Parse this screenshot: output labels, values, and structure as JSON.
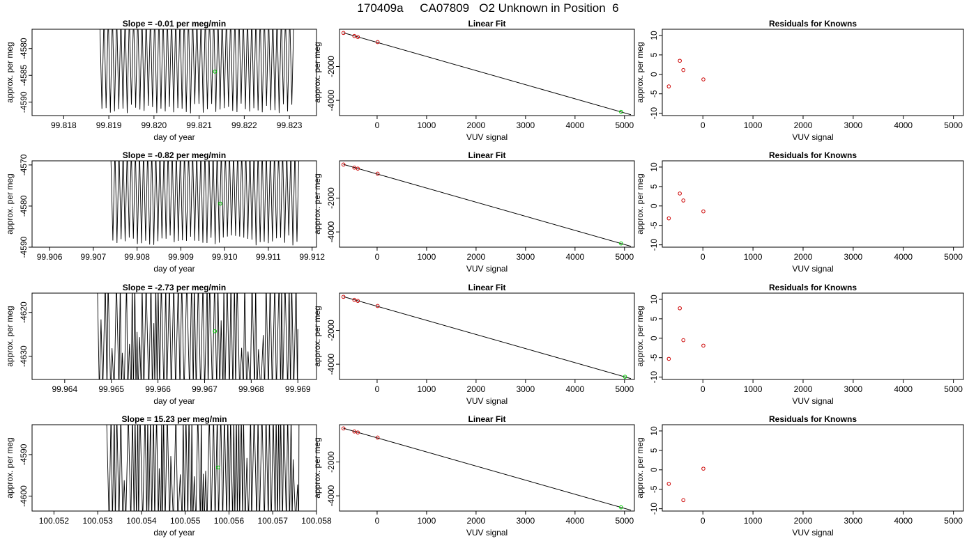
{
  "title": "170409a     CA07809   O2 Unknown in Position  6",
  "colors": {
    "line": "#000000",
    "known_point": "#cc0000",
    "unknown_point": "#00cc00"
  },
  "chart_data": [
    {
      "type": "line",
      "title": "Slope =  -0.01  per meg/min",
      "xlabel": "day of year",
      "ylabel": "approx. per meg",
      "xlim": [
        99.8173,
        99.8236
      ],
      "ylim": [
        -4592.5,
        -4576.4
      ],
      "xticks": [
        "99.818",
        "99.819",
        "99.820",
        "99.821",
        "99.822",
        "99.823"
      ],
      "yticks": [
        "-4580",
        "-4585",
        "-4590"
      ],
      "x_range": [
        99.8188,
        99.8231
      ],
      "mode": "dense",
      "highlight": {
        "x": 99.82135,
        "y": -4584.3
      }
    },
    {
      "type": "line",
      "title": "Slope =  -0.82  per meg/min",
      "xlabel": "day of year",
      "ylabel": "approx. per meg",
      "xlim": [
        99.9056,
        99.9121
      ],
      "ylim": [
        -4590,
        -4569
      ],
      "xticks": [
        "99.906",
        "99.907",
        "99.908",
        "99.909",
        "99.910",
        "99.911",
        "99.912"
      ],
      "yticks": [
        "-4570",
        "-4580",
        "-4590"
      ],
      "x_range": [
        99.9074,
        99.9117
      ],
      "mode": "dense",
      "highlight": {
        "x": 99.9099,
        "y": -4579.4
      }
    },
    {
      "type": "line",
      "title": "Slope =  -2.73  per meg/min",
      "xlabel": "day of year",
      "ylabel": "approx. per meg",
      "xlim": [
        99.9633,
        99.9694
      ],
      "ylim": [
        -4635.3,
        -4615.6
      ],
      "xticks": [
        "99.964",
        "99.965",
        "99.966",
        "99.967",
        "99.968",
        "99.969"
      ],
      "yticks": [
        "-4620",
        "-4630"
      ],
      "x_range": [
        99.9647,
        99.969
      ],
      "mode": "sparse",
      "highlight": {
        "x": 99.96722,
        "y": -4624.3
      }
    },
    {
      "type": "line",
      "title": "Slope =  15.23  per meg/min",
      "xlabel": "day of year",
      "ylabel": "approx. per meg",
      "xlim": [
        100.0515,
        100.058
      ],
      "ylim": [
        -4603.6,
        -4582.8
      ],
      "xticks": [
        "100.052",
        "100.053",
        "100.054",
        "100.055",
        "100.056",
        "100.057",
        "100.058"
      ],
      "yticks": [
        "-4590",
        "-4600"
      ],
      "x_range": [
        100.0532,
        100.0576
      ],
      "mode": "sparse",
      "highlight": {
        "x": 100.05575,
        "y": -4593.1
      }
    },
    {
      "type": "scatter",
      "title": "Linear Fit",
      "xlabel": "VUV signal",
      "ylabel": "approx. per meg",
      "xlim": [
        -760,
        5200
      ],
      "ylim": [
        -4900,
        200
      ],
      "xticks": [
        "0",
        "1000",
        "2000",
        "3000",
        "4000",
        "5000"
      ],
      "yticks": [
        "-2000",
        "-4000"
      ],
      "fit_line": {
        "x": [
          -680,
          5130
        ],
        "y": [
          -10,
          -4850
        ]
      },
      "knowns": [
        {
          "x": -680,
          "y": -20
        },
        {
          "x": -460,
          "y": -200
        },
        {
          "x": -390,
          "y": -260
        },
        {
          "x": 10,
          "y": -560
        }
      ],
      "unknown": {
        "x": 4930,
        "y": -4680
      }
    },
    {
      "type": "scatter",
      "title": "Linear Fit",
      "xlabel": "VUV signal",
      "ylabel": "approx. per meg",
      "xlim": [
        -760,
        5200
      ],
      "ylim": [
        -4900,
        200
      ],
      "xticks": [
        "0",
        "1000",
        "2000",
        "3000",
        "4000",
        "5000"
      ],
      "yticks": [
        "-2000",
        "-4000"
      ],
      "fit_line": {
        "x": [
          -680,
          5130
        ],
        "y": [
          -10,
          -4850
        ]
      },
      "knowns": [
        {
          "x": -680,
          "y": -20
        },
        {
          "x": -460,
          "y": -200
        },
        {
          "x": -390,
          "y": -260
        },
        {
          "x": 10,
          "y": -560
        }
      ],
      "unknown": {
        "x": 4930,
        "y": -4680
      }
    },
    {
      "type": "scatter",
      "title": "Linear Fit",
      "xlabel": "VUV signal",
      "ylabel": "approx. per meg",
      "xlim": [
        -760,
        5200
      ],
      "ylim": [
        -4900,
        200
      ],
      "xticks": [
        "0",
        "1000",
        "2000",
        "3000",
        "4000",
        "5000"
      ],
      "yticks": [
        "-2000",
        "-4000"
      ],
      "fit_line": {
        "x": [
          -680,
          5130
        ],
        "y": [
          -10,
          -4850
        ]
      },
      "knowns": [
        {
          "x": -680,
          "y": -20
        },
        {
          "x": -460,
          "y": -200
        },
        {
          "x": -390,
          "y": -260
        },
        {
          "x": 10,
          "y": -560
        }
      ],
      "unknown": {
        "x": 5010,
        "y": -4740
      }
    },
    {
      "type": "scatter",
      "title": "Linear Fit",
      "xlabel": "VUV signal",
      "ylabel": "approx. per meg",
      "xlim": [
        -760,
        5200
      ],
      "ylim": [
        -4900,
        200
      ],
      "xticks": [
        "0",
        "1000",
        "2000",
        "3000",
        "4000",
        "5000"
      ],
      "yticks": [
        "-2000",
        "-4000"
      ],
      "fit_line": {
        "x": [
          -680,
          5130
        ],
        "y": [
          -10,
          -4850
        ]
      },
      "knowns": [
        {
          "x": -680,
          "y": -20
        },
        {
          "x": -460,
          "y": -200
        },
        {
          "x": -390,
          "y": -260
        },
        {
          "x": 10,
          "y": -560
        }
      ],
      "unknown": {
        "x": 4930,
        "y": -4680
      }
    },
    {
      "type": "scatter",
      "title": "Residuals for Knowns",
      "xlabel": "VUV signal",
      "ylabel": "approx. per meg",
      "xlim": [
        -810,
        5200
      ],
      "ylim": [
        -10.6,
        11.6
      ],
      "xticks": [
        "0",
        "1000",
        "2000",
        "3000",
        "4000",
        "5000"
      ],
      "yticks": [
        "10",
        "5",
        "0",
        "-5",
        "-10"
      ],
      "points": [
        {
          "x": -680,
          "y": -3.1
        },
        {
          "x": -460,
          "y": 3.5
        },
        {
          "x": -390,
          "y": 1.1
        },
        {
          "x": 10,
          "y": -1.3
        }
      ]
    },
    {
      "type": "scatter",
      "title": "Residuals for Knowns",
      "xlabel": "VUV signal",
      "ylabel": "approx. per meg",
      "xlim": [
        -810,
        5200
      ],
      "ylim": [
        -10.6,
        11.6
      ],
      "xticks": [
        "0",
        "1000",
        "2000",
        "3000",
        "4000",
        "5000"
      ],
      "yticks": [
        "10",
        "5",
        "0",
        "-5",
        "-10"
      ],
      "points": [
        {
          "x": -680,
          "y": -3.2
        },
        {
          "x": -460,
          "y": 3.2
        },
        {
          "x": -390,
          "y": 1.4
        },
        {
          "x": 10,
          "y": -1.4
        }
      ]
    },
    {
      "type": "scatter",
      "title": "Residuals for Knowns",
      "xlabel": "VUV signal",
      "ylabel": "approx. per meg",
      "xlim": [
        -810,
        5200
      ],
      "ylim": [
        -10.6,
        11.6
      ],
      "xticks": [
        "0",
        "1000",
        "2000",
        "3000",
        "4000",
        "5000"
      ],
      "yticks": [
        "10",
        "5",
        "0",
        "-5",
        "-10"
      ],
      "points": [
        {
          "x": -680,
          "y": -5.3
        },
        {
          "x": -460,
          "y": 7.7
        },
        {
          "x": -390,
          "y": -0.5
        },
        {
          "x": 10,
          "y": -1.9
        }
      ]
    },
    {
      "type": "scatter",
      "title": "Residuals for Knowns",
      "xlabel": "VUV signal",
      "ylabel": "approx. per meg",
      "xlim": [
        -810,
        5200
      ],
      "ylim": [
        -10.6,
        11.6
      ],
      "xticks": [
        "0",
        "1000",
        "2000",
        "3000",
        "4000",
        "5000"
      ],
      "yticks": [
        "10",
        "5",
        "0",
        "-5",
        "-10"
      ],
      "points": [
        {
          "x": -680,
          "y": -3.6
        },
        {
          "x": -390,
          "y": -7.8
        },
        {
          "x": 10,
          "y": 0.3
        }
      ]
    }
  ]
}
